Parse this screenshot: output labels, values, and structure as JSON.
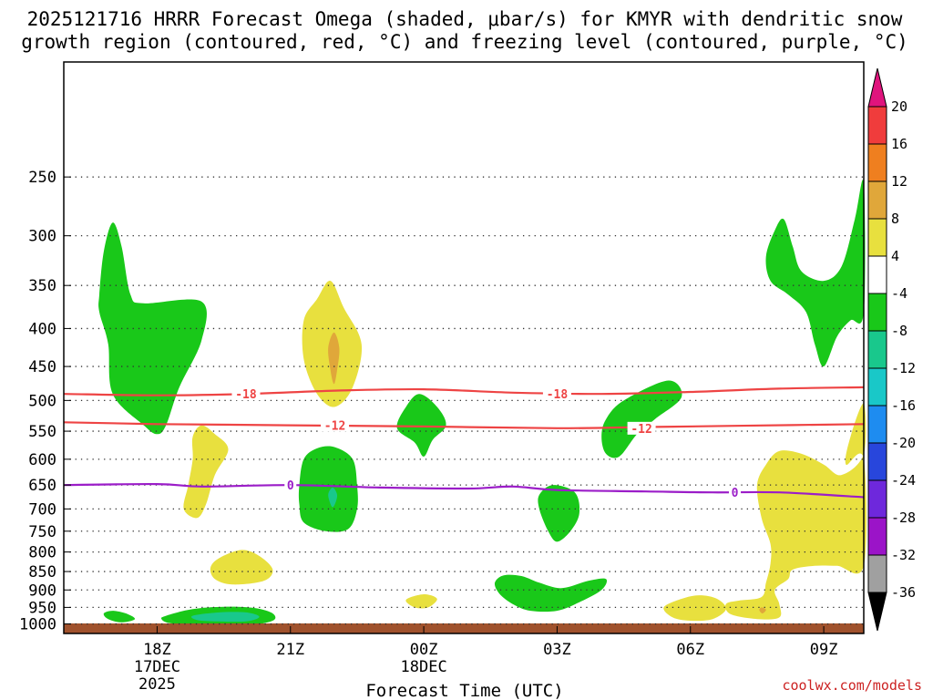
{
  "chart_data": {
    "type": "heatmap",
    "title_line1": "2025121716 HRRR Forecast Omega (shaded, μbar/s) for KMYR with dendritic snow",
    "title_line2": "growth region (contoured, red, °C) and freezing level (contoured, purple, °C)",
    "xlabel": "Forecast Time (UTC)",
    "ylabel": "",
    "credit": "coolwx.com/models",
    "x_range_hours": [
      -2.1,
      15.9
    ],
    "y_range_hpa": [
      175,
      1030
    ],
    "x_ticks": [
      {
        "hour": 0,
        "label": "18Z",
        "sub1": "17DEC",
        "sub2": "2025"
      },
      {
        "hour": 3,
        "label": "21Z",
        "sub1": "",
        "sub2": ""
      },
      {
        "hour": 6,
        "label": "00Z",
        "sub1": "18DEC",
        "sub2": ""
      },
      {
        "hour": 9,
        "label": "03Z",
        "sub1": "",
        "sub2": ""
      },
      {
        "hour": 12,
        "label": "06Z",
        "sub1": "",
        "sub2": ""
      },
      {
        "hour": 15,
        "label": "09Z",
        "sub1": "",
        "sub2": ""
      }
    ],
    "y_ticks": [
      {
        "p": 250,
        "label": "250"
      },
      {
        "p": 300,
        "label": "300"
      },
      {
        "p": 350,
        "label": "350"
      },
      {
        "p": 400,
        "label": "400"
      },
      {
        "p": 450,
        "label": "450"
      },
      {
        "p": 500,
        "label": "500"
      },
      {
        "p": 550,
        "label": "550"
      },
      {
        "p": 600,
        "label": "600"
      },
      {
        "p": 650,
        "label": "650"
      },
      {
        "p": 700,
        "label": "700"
      },
      {
        "p": 750,
        "label": "750"
      },
      {
        "p": 800,
        "label": "800"
      },
      {
        "p": 850,
        "label": "850"
      },
      {
        "p": 900,
        "label": "900"
      },
      {
        "p": 950,
        "label": "950"
      },
      {
        "p": 1000,
        "label": "1000"
      }
    ],
    "colorbar": {
      "levels": [
        "20",
        "16",
        "12",
        "8",
        "4",
        "-4",
        "-8",
        "-12",
        "-16",
        "-20",
        "-24",
        "-28",
        "-32",
        "-36"
      ],
      "colors": [
        "#f03c3c",
        "#ef7f1f",
        "#e0a73a",
        "#e8e03e",
        "#ffffff",
        "#19c819",
        "#19c88c",
        "#19c8c8",
        "#1e8cf0",
        "#2846dc",
        "#6e28dc",
        "#9b14c8",
        "#a0a0a0"
      ],
      "top_arrow_color": "#e0147d",
      "bottom_arrow_color": "#000000"
    },
    "contours": [
      {
        "name": "dgz-minus-18",
        "value": "-18",
        "color": "#ee4444",
        "points": [
          [
            -2.1,
            490
          ],
          [
            0,
            492
          ],
          [
            2,
            490
          ],
          [
            4,
            485
          ],
          [
            6,
            483
          ],
          [
            8,
            488
          ],
          [
            10,
            490
          ],
          [
            12,
            487
          ],
          [
            14,
            482
          ],
          [
            15.9,
            480
          ]
        ],
        "label_positions": [
          [
            2.0,
            490
          ],
          [
            9.0,
            490
          ]
        ]
      },
      {
        "name": "dgz-minus-12",
        "value": "-12",
        "color": "#ee4444",
        "points": [
          [
            -2.1,
            535
          ],
          [
            0,
            538
          ],
          [
            3,
            540
          ],
          [
            6,
            542
          ],
          [
            9,
            545
          ],
          [
            11,
            543
          ],
          [
            13,
            541
          ],
          [
            15.9,
            538
          ]
        ],
        "label_positions": [
          [
            4.0,
            540
          ],
          [
            10.9,
            545
          ]
        ]
      },
      {
        "name": "freezing-level-0",
        "value": "0",
        "color": "#9b1dc8",
        "points": [
          [
            -2.1,
            650
          ],
          [
            0,
            648
          ],
          [
            1,
            653
          ],
          [
            3,
            650
          ],
          [
            5,
            655
          ],
          [
            7,
            657
          ],
          [
            8,
            653
          ],
          [
            9,
            660
          ],
          [
            11,
            663
          ],
          [
            12.5,
            665
          ],
          [
            14,
            665
          ],
          [
            15.9,
            675
          ]
        ],
        "label_positions": [
          [
            3.0,
            650
          ],
          [
            13.0,
            665
          ]
        ]
      }
    ],
    "regions": [
      {
        "name": "green-region-1",
        "omega": "-4 to -8",
        "color": "#19c819",
        "points": [
          [
            -1.3,
            360
          ],
          [
            -1.2,
            315
          ],
          [
            -1.0,
            288
          ],
          [
            -0.8,
            310
          ],
          [
            -0.6,
            360
          ],
          [
            -0.3,
            370
          ],
          [
            1.0,
            368
          ],
          [
            1.0,
            415
          ],
          [
            0.5,
            480
          ],
          [
            0.2,
            540
          ],
          [
            0.0,
            555
          ],
          [
            -0.3,
            540
          ],
          [
            -1.0,
            490
          ],
          [
            -1.1,
            420
          ],
          [
            -1.3,
            380
          ]
        ]
      },
      {
        "name": "green-region-2",
        "omega": "-4 to -8",
        "color": "#19c819",
        "points": [
          [
            5.4,
            545
          ],
          [
            5.6,
            510
          ],
          [
            5.9,
            490
          ],
          [
            6.3,
            510
          ],
          [
            6.5,
            540
          ],
          [
            6.2,
            565
          ],
          [
            6.0,
            595
          ],
          [
            5.8,
            570
          ]
        ]
      },
      {
        "name": "green-region-3",
        "omega": "-4 to -8",
        "color": "#19c819",
        "points": [
          [
            10.0,
            560
          ],
          [
            10.1,
            530
          ],
          [
            10.5,
            500
          ],
          [
            11.5,
            470
          ],
          [
            11.8,
            495
          ],
          [
            11.2,
            530
          ],
          [
            10.8,
            555
          ],
          [
            10.4,
            595
          ],
          [
            10.1,
            590
          ]
        ]
      },
      {
        "name": "green-region-4",
        "omega": "-4 to -8",
        "color": "#19c819",
        "points": [
          [
            3.2,
            650
          ],
          [
            3.3,
            600
          ],
          [
            3.6,
            580
          ],
          [
            4.0,
            578
          ],
          [
            4.4,
            600
          ],
          [
            4.5,
            650
          ],
          [
            4.5,
            700
          ],
          [
            4.3,
            745
          ],
          [
            3.8,
            750
          ],
          [
            3.3,
            730
          ],
          [
            3.2,
            690
          ]
        ]
      },
      {
        "name": "green-region-5",
        "omega": "-4 to -8",
        "color": "#19c819",
        "points": [
          [
            8.6,
            700
          ],
          [
            8.6,
            670
          ],
          [
            8.9,
            650
          ],
          [
            9.4,
            665
          ],
          [
            9.5,
            710
          ],
          [
            9.3,
            750
          ],
          [
            9.0,
            775
          ],
          [
            8.8,
            750
          ]
        ]
      },
      {
        "name": "green-region-6",
        "omega": "-4 to -8",
        "color": "#19c819",
        "points": [
          [
            7.6,
            880
          ],
          [
            7.8,
            860
          ],
          [
            8.2,
            862
          ],
          [
            8.6,
            880
          ],
          [
            9.1,
            895
          ],
          [
            9.7,
            875
          ],
          [
            10.1,
            870
          ],
          [
            10.0,
            900
          ],
          [
            9.5,
            935
          ],
          [
            9.0,
            960
          ],
          [
            8.4,
            960
          ],
          [
            8.0,
            940
          ],
          [
            7.7,
            910
          ]
        ]
      },
      {
        "name": "green-region-7",
        "omega": "-4 to -8",
        "color": "#19c819",
        "points": [
          [
            0.2,
            975
          ],
          [
            0.8,
            955
          ],
          [
            1.5,
            948
          ],
          [
            2.2,
            952
          ],
          [
            2.6,
            968
          ],
          [
            2.6,
            990
          ],
          [
            2.0,
            1005
          ],
          [
            1.0,
            1005
          ],
          [
            0.3,
            998
          ],
          [
            0.1,
            985
          ]
        ]
      },
      {
        "name": "green-region-8",
        "omega": "-4 to -8",
        "color": "#19c819",
        "points": [
          [
            -1.2,
            968
          ],
          [
            -1.0,
            960
          ],
          [
            -0.7,
            968
          ],
          [
            -0.5,
            985
          ],
          [
            -0.8,
            995
          ],
          [
            -1.1,
            985
          ]
        ]
      },
      {
        "name": "green-region-9",
        "omega": "-4 to -8",
        "color": "#19c819",
        "points": [
          [
            13.7,
            320
          ],
          [
            13.9,
            295
          ],
          [
            14.1,
            285
          ],
          [
            14.3,
            310
          ],
          [
            14.5,
            335
          ],
          [
            15.0,
            345
          ],
          [
            15.4,
            330
          ],
          [
            15.7,
            285
          ],
          [
            15.9,
            255
          ],
          [
            15.9,
            380
          ],
          [
            15.6,
            390
          ],
          [
            15.3,
            410
          ],
          [
            15.0,
            450
          ],
          [
            14.8,
            420
          ],
          [
            14.6,
            380
          ],
          [
            14.2,
            360
          ],
          [
            13.8,
            345
          ]
        ]
      },
      {
        "name": "yellow-region-1",
        "omega": "4 to 8",
        "color": "#e8e03e",
        "points": [
          [
            3.3,
            390
          ],
          [
            3.6,
            365
          ],
          [
            3.9,
            345
          ],
          [
            4.2,
            375
          ],
          [
            4.6,
            420
          ],
          [
            4.4,
            480
          ],
          [
            4.0,
            510
          ],
          [
            3.6,
            490
          ],
          [
            3.3,
            440
          ]
        ]
      },
      {
        "name": "yellow-region-2",
        "omega": "4 to 8",
        "color": "#e8e03e",
        "points": [
          [
            0.8,
            600
          ],
          [
            0.8,
            560
          ],
          [
            1.0,
            540
          ],
          [
            1.3,
            555
          ],
          [
            1.6,
            582
          ],
          [
            1.3,
            630
          ],
          [
            1.1,
            690
          ],
          [
            0.9,
            720
          ],
          [
            0.6,
            700
          ],
          [
            0.7,
            650
          ]
        ]
      },
      {
        "name": "yellow-region-3",
        "omega": "4 to 8",
        "color": "#e8e03e",
        "points": [
          [
            1.2,
            840
          ],
          [
            1.4,
            815
          ],
          [
            1.9,
            795
          ],
          [
            2.3,
            810
          ],
          [
            2.6,
            845
          ],
          [
            2.4,
            875
          ],
          [
            1.7,
            885
          ],
          [
            1.3,
            870
          ]
        ]
      },
      {
        "name": "yellow-region-4",
        "omega": "4 to 8",
        "color": "#e8e03e",
        "points": [
          [
            5.6,
            928
          ],
          [
            6.0,
            912
          ],
          [
            6.3,
            925
          ],
          [
            6.1,
            950
          ],
          [
            5.8,
            950
          ]
        ]
      },
      {
        "name": "yellow-region-5",
        "omega": "4 to 8",
        "color": "#e8e03e",
        "points": [
          [
            11.4,
            950
          ],
          [
            11.8,
            925
          ],
          [
            12.2,
            915
          ],
          [
            12.6,
            925
          ],
          [
            12.8,
            955
          ],
          [
            12.5,
            985
          ],
          [
            12.0,
            990
          ],
          [
            11.6,
            980
          ]
        ]
      },
      {
        "name": "yellow-region-6",
        "omega": "4 to 8",
        "color": "#e8e03e",
        "points": [
          [
            13.5,
            650
          ],
          [
            13.7,
            610
          ],
          [
            14.0,
            585
          ],
          [
            14.5,
            590
          ],
          [
            15.0,
            610
          ],
          [
            15.4,
            630
          ],
          [
            15.9,
            590
          ],
          [
            15.9,
            505
          ],
          [
            15.6,
            560
          ],
          [
            15.5,
            610
          ],
          [
            15.9,
            600
          ],
          [
            15.9,
            835
          ],
          [
            15.3,
            835
          ],
          [
            14.8,
            835
          ],
          [
            14.3,
            845
          ],
          [
            14.2,
            870
          ],
          [
            13.9,
            900
          ],
          [
            14.0,
            940
          ],
          [
            14.0,
            980
          ],
          [
            13.5,
            985
          ],
          [
            12.9,
            970
          ],
          [
            12.8,
            940
          ],
          [
            13.1,
            930
          ],
          [
            13.6,
            920
          ],
          [
            13.7,
            880
          ],
          [
            13.8,
            830
          ],
          [
            13.8,
            780
          ],
          [
            13.6,
            720
          ]
        ]
      },
      {
        "name": "orange-region-1",
        "omega": "8 to 12",
        "color": "#e0a73a",
        "points": [
          [
            3.85,
            425
          ],
          [
            3.98,
            405
          ],
          [
            4.1,
            425
          ],
          [
            4.05,
            455
          ],
          [
            3.98,
            475
          ],
          [
            3.9,
            455
          ]
        ]
      },
      {
        "name": "orange-region-2",
        "omega": "8 to 12",
        "color": "#e0a73a",
        "points": [
          [
            13.55,
            958
          ],
          [
            13.6,
            950
          ],
          [
            13.7,
            957
          ],
          [
            13.62,
            968
          ]
        ]
      },
      {
        "name": "teal-region-1",
        "omega": "-8 to -12",
        "color": "#19c88c",
        "points": [
          [
            0.8,
            975
          ],
          [
            1.4,
            965
          ],
          [
            2.0,
            965
          ],
          [
            2.3,
            978
          ],
          [
            2.0,
            992
          ],
          [
            1.3,
            992
          ],
          [
            0.9,
            988
          ]
        ]
      },
      {
        "name": "teal-region-2",
        "omega": "-8 to -12",
        "color": "#19c88c",
        "points": [
          [
            3.85,
            670
          ],
          [
            3.95,
            655
          ],
          [
            4.05,
            670
          ],
          [
            4.0,
            690
          ],
          [
            3.93,
            695
          ]
        ]
      }
    ]
  }
}
